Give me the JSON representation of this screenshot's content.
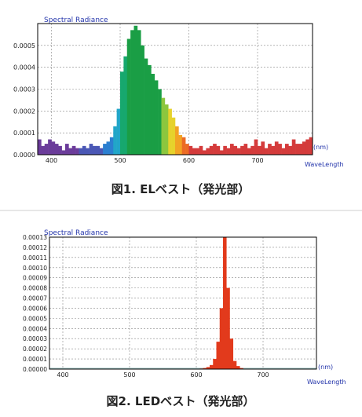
{
  "chart_data": [
    {
      "type": "bar",
      "title": "Spectral Radiance",
      "caption": "図1. ELベスト（発光部）",
      "xlabel": "WaveLength",
      "x_unit": "(nm)",
      "ylim": [
        0,
        0.0006
      ],
      "xlim": [
        380,
        780
      ],
      "y_ticks": [
        "0.0000",
        "0.0001",
        "0.0002",
        "0.0003",
        "0.0004",
        "0.0005"
      ],
      "x_ticks": [
        "400",
        "500",
        "600",
        "700"
      ],
      "grid": true,
      "series": [
        {
          "x": [
            380,
            385,
            390,
            395,
            400,
            405,
            410,
            415,
            420,
            425,
            430,
            435,
            440,
            445,
            450,
            455,
            460,
            465,
            470,
            475,
            480,
            485,
            490,
            495,
            500,
            505,
            510,
            515,
            520,
            525,
            530,
            535,
            540,
            545,
            550,
            555,
            560,
            565,
            570,
            575,
            580,
            585,
            590,
            595,
            600,
            605,
            610,
            615,
            620,
            625,
            630,
            635,
            640,
            645,
            650,
            655,
            660,
            665,
            670,
            675,
            680,
            685,
            690,
            695,
            700,
            705,
            710,
            715,
            720,
            725,
            730,
            735,
            740,
            745,
            750,
            755,
            760,
            765,
            770,
            775
          ],
          "values": [
            7e-05,
            4e-05,
            5e-05,
            7e-05,
            6e-05,
            5e-05,
            4e-05,
            2e-05,
            5e-05,
            3e-05,
            4e-05,
            3e-05,
            3e-05,
            4e-05,
            3e-05,
            5e-05,
            4e-05,
            4e-05,
            3e-05,
            5e-05,
            6e-05,
            8e-05,
            0.00013,
            0.00021,
            0.00038,
            0.00045,
            0.00053,
            0.00057,
            0.00059,
            0.00057,
            0.0005,
            0.00044,
            0.00041,
            0.00037,
            0.00034,
            0.0003,
            0.00026,
            0.00023,
            0.00021,
            0.00017,
            0.00013,
            9e-05,
            8e-05,
            5e-05,
            4e-05,
            3e-05,
            3e-05,
            4e-05,
            2e-05,
            3e-05,
            4e-05,
            5e-05,
            4e-05,
            2e-05,
            4e-05,
            3e-05,
            5e-05,
            4e-05,
            3e-05,
            4e-05,
            5e-05,
            3e-05,
            4e-05,
            7e-05,
            4e-05,
            6e-05,
            3e-05,
            5e-05,
            4e-05,
            6e-05,
            5e-05,
            3e-05,
            5e-05,
            4e-05,
            7e-05,
            5e-05,
            5e-05,
            6e-05,
            7e-05,
            8e-05
          ]
        }
      ],
      "bar_colors": "wavelength spectrum (violet-blue-cyan-green-yellow-orange-red)",
      "frame_color": "#000000",
      "title_color": "#2233aa"
    },
    {
      "type": "bar",
      "title": "Spectral Radiance",
      "caption": "図2. LEDベスト（発光部）",
      "xlabel": "WaveLength",
      "x_unit": "(nm)",
      "ylim": [
        0,
        0.00013
      ],
      "xlim": [
        380,
        780
      ],
      "y_ticks": [
        "0.00000",
        "0.00001",
        "0.00002",
        "0.00003",
        "0.00004",
        "0.00005",
        "0.00006",
        "0.00007",
        "0.00008",
        "0.00009",
        "0.00010",
        "0.00011",
        "0.00012",
        "0.00013"
      ],
      "x_ticks": [
        "400",
        "500",
        "600",
        "700"
      ],
      "grid": true,
      "series": [
        {
          "x": [
            600,
            605,
            610,
            615,
            620,
            625,
            630,
            635,
            640,
            645,
            650,
            655,
            660,
            665,
            670
          ],
          "values": [
            2e-07,
            5e-07,
            1e-06,
            2e-06,
            4e-06,
            1e-05,
            2.7e-05,
            6e-05,
            0.00013,
            8e-05,
            3e-05,
            8e-06,
            3e-06,
            1e-06,
            3e-07
          ]
        }
      ],
      "bar_color": "#e23a1c",
      "frame_color": "#000000",
      "title_color": "#2233aa"
    }
  ]
}
